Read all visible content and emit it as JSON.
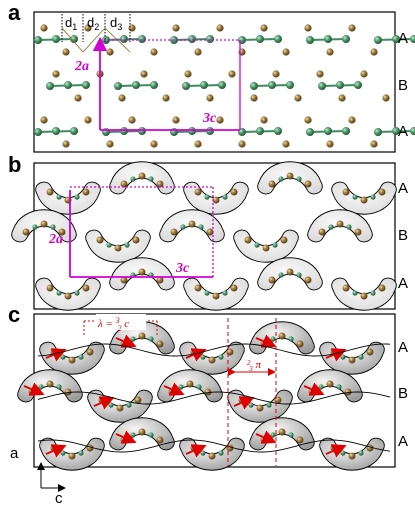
{
  "panels": [
    {
      "id": "a",
      "label": "a",
      "layers": [
        "A",
        "B",
        "A"
      ],
      "cell_vertical": "2a",
      "cell_horizontal": "3c",
      "spacings": [
        {
          "main": "d",
          "sub": "1"
        },
        {
          "main": "d",
          "sub": "2"
        },
        {
          "main": "d",
          "sub": "3"
        }
      ]
    },
    {
      "id": "b",
      "label": "b",
      "layers": [
        "A",
        "B",
        "A"
      ],
      "cell_vertical": "2a",
      "cell_horizontal": "3c"
    },
    {
      "id": "c",
      "label": "c",
      "layers": [
        "A",
        "B",
        "A"
      ],
      "wavelength": {
        "prefix": "λ = ",
        "num": "3",
        "den": "2",
        "suffix": "c"
      },
      "phase": {
        "num": "2",
        "den": "3",
        "suffix": "π"
      }
    }
  ],
  "axes": {
    "vertical": "a",
    "horizontal": "c"
  },
  "colors": {
    "magenta": "#d400d4",
    "red": "#e00000",
    "green_atom": "#3f8a5e",
    "gold_atom": "#8a6a2a",
    "frame": "#000000",
    "blob": "#e4e4e4"
  }
}
